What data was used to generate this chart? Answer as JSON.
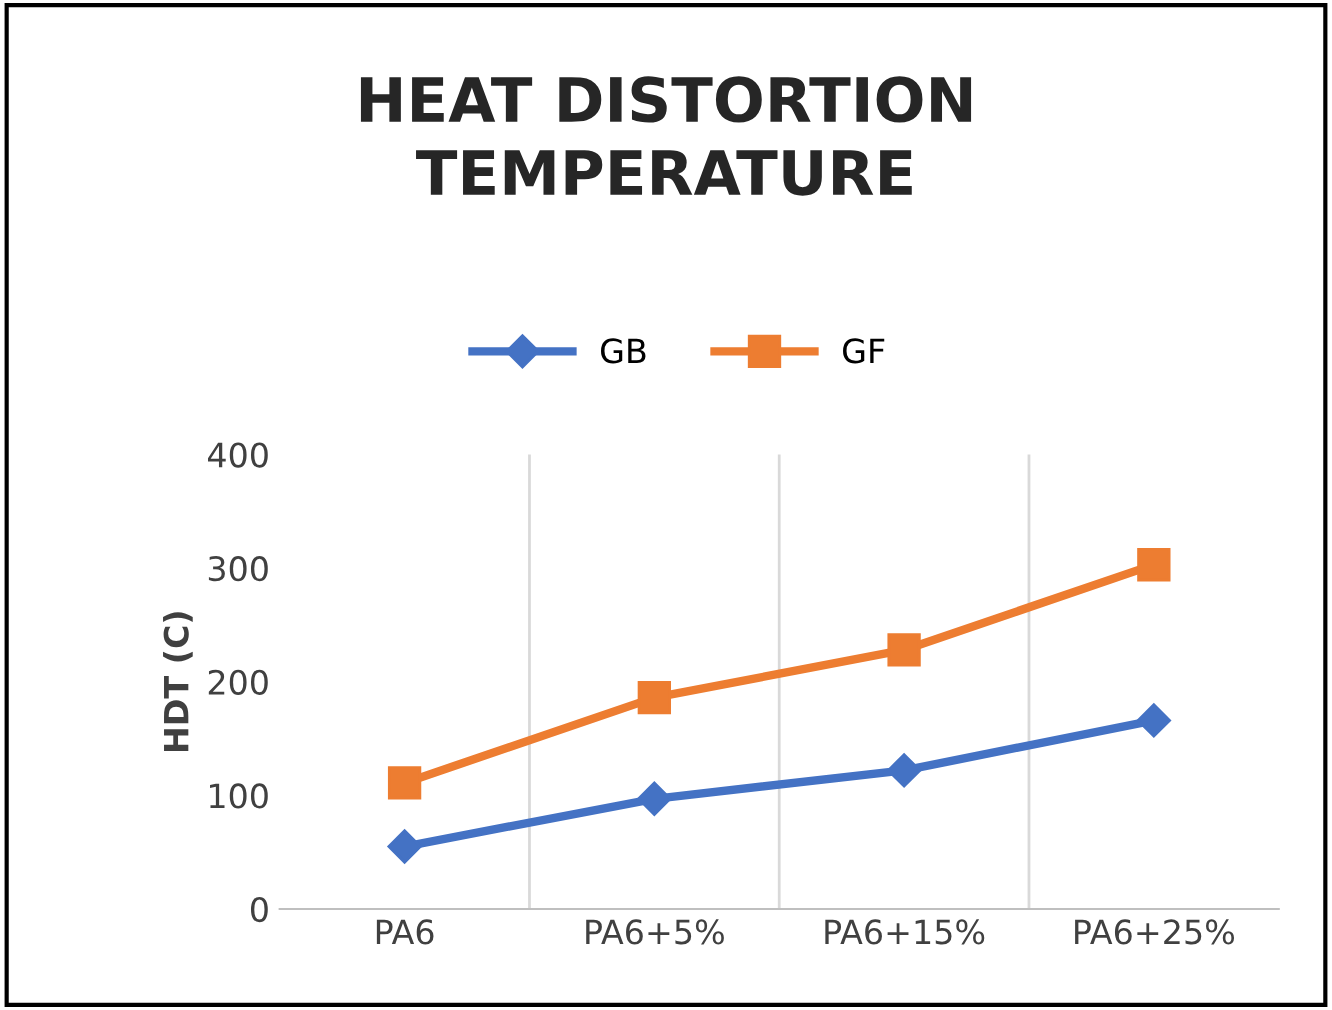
{
  "chart_data": {
    "type": "line",
    "title": "HEAT DISTORTION\nTEMPERATURE",
    "ylabel": "HDT (C)",
    "categories": [
      "PA6",
      "PA6+5%",
      "PA6+15%",
      "PA6+25%"
    ],
    "series": [
      {
        "name": "GB",
        "color": "#4472c4",
        "marker": "diamond",
        "values": [
          55,
          97,
          122,
          166
        ]
      },
      {
        "name": "GF",
        "color": "#ed7d31",
        "marker": "square",
        "values": [
          111,
          186,
          228,
          303
        ]
      }
    ],
    "ylim": [
      0,
      400
    ],
    "yticks": [
      0,
      100,
      200,
      300,
      400
    ],
    "grid": "x",
    "legend": "top",
    "line_style": "solid"
  }
}
